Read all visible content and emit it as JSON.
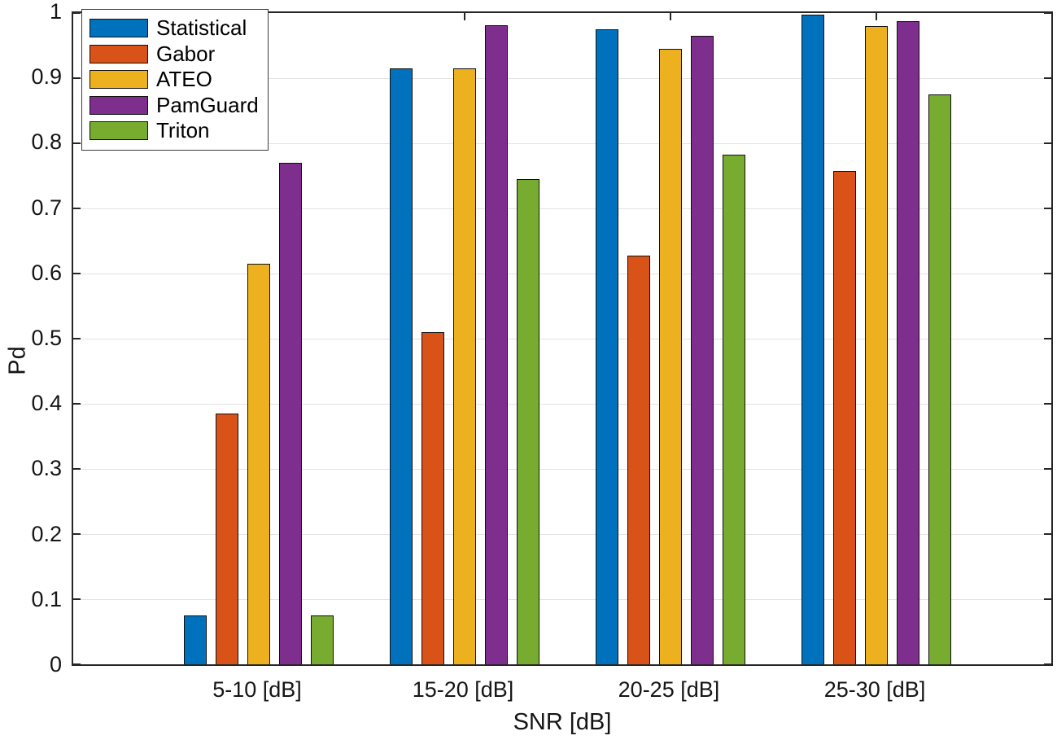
{
  "chart_data": {
    "type": "bar",
    "title": "",
    "xlabel": "SNR [dB]",
    "ylabel": "Pd",
    "categories": [
      "5-10 [dB]",
      "15-20 [dB]",
      "20-25 [dB]",
      "25-30 [dB]"
    ],
    "series": [
      {
        "name": "Statistical",
        "color": "#0072BD",
        "values": [
          0.075,
          0.915,
          0.975,
          0.997
        ]
      },
      {
        "name": "Gabor",
        "color": "#D95319",
        "values": [
          0.385,
          0.51,
          0.627,
          0.757
        ]
      },
      {
        "name": "ATEO",
        "color": "#EDB120",
        "values": [
          0.615,
          0.915,
          0.945,
          0.98
        ]
      },
      {
        "name": "PamGuard",
        "color": "#7E2F8E",
        "values": [
          0.77,
          0.981,
          0.965,
          0.988
        ]
      },
      {
        "name": "Triton",
        "color": "#77AC30",
        "values": [
          0.075,
          0.745,
          0.783,
          0.875
        ]
      }
    ],
    "ylim": [
      0,
      1
    ],
    "yticks": [
      {
        "value": 0.0,
        "label": "0"
      },
      {
        "value": 0.1,
        "label": "0.1"
      },
      {
        "value": 0.2,
        "label": "0.2"
      },
      {
        "value": 0.3,
        "label": "0.3"
      },
      {
        "value": 0.4,
        "label": "0.4"
      },
      {
        "value": 0.5,
        "label": "0.5"
      },
      {
        "value": 0.6,
        "label": "0.6"
      },
      {
        "value": 0.7,
        "label": "0.7"
      },
      {
        "value": 0.8,
        "label": "0.8"
      },
      {
        "value": 0.9,
        "label": "0.9"
      },
      {
        "value": 1.0,
        "label": "1"
      }
    ],
    "grid": "horizontal",
    "legend_position": "top-left",
    "axis_color": "#262626",
    "grid_color": "#e3e3e3"
  }
}
